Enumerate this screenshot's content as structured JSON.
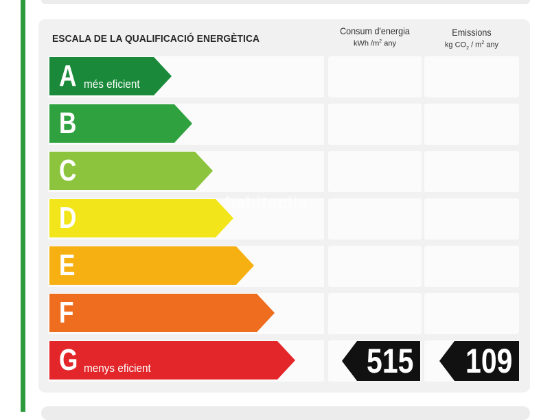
{
  "title": "ESCALA DE LA QUALIFICACIÓ ENERGÈTICA",
  "columns": {
    "energy": {
      "label": "Consum d'energia",
      "unit_prefix": "kWh /m",
      "unit_sup": "2",
      "unit_suffix": " any"
    },
    "emissions": {
      "label": "Emissions",
      "unit_prefix": "kg CO",
      "unit_sub": "2",
      "unit_mid": " / m",
      "unit_sup": "2",
      "unit_suffix": " any"
    }
  },
  "classes": [
    {
      "letter": "A",
      "label": "més eficient",
      "color": "#1a8a3a"
    },
    {
      "letter": "B",
      "label": "",
      "color": "#2fa23f"
    },
    {
      "letter": "C",
      "label": "",
      "color": "#8cc43d"
    },
    {
      "letter": "D",
      "label": "",
      "color": "#f2e51a"
    },
    {
      "letter": "E",
      "label": "",
      "color": "#f6b012"
    },
    {
      "letter": "F",
      "label": "",
      "color": "#ee6d1f"
    },
    {
      "letter": "G",
      "label": "menys eficient",
      "color": "#e3262a"
    }
  ],
  "rating": {
    "energy_value": "515",
    "emissions_value": "109",
    "badge_color": "#111111"
  },
  "watermark": "habitaclia"
}
